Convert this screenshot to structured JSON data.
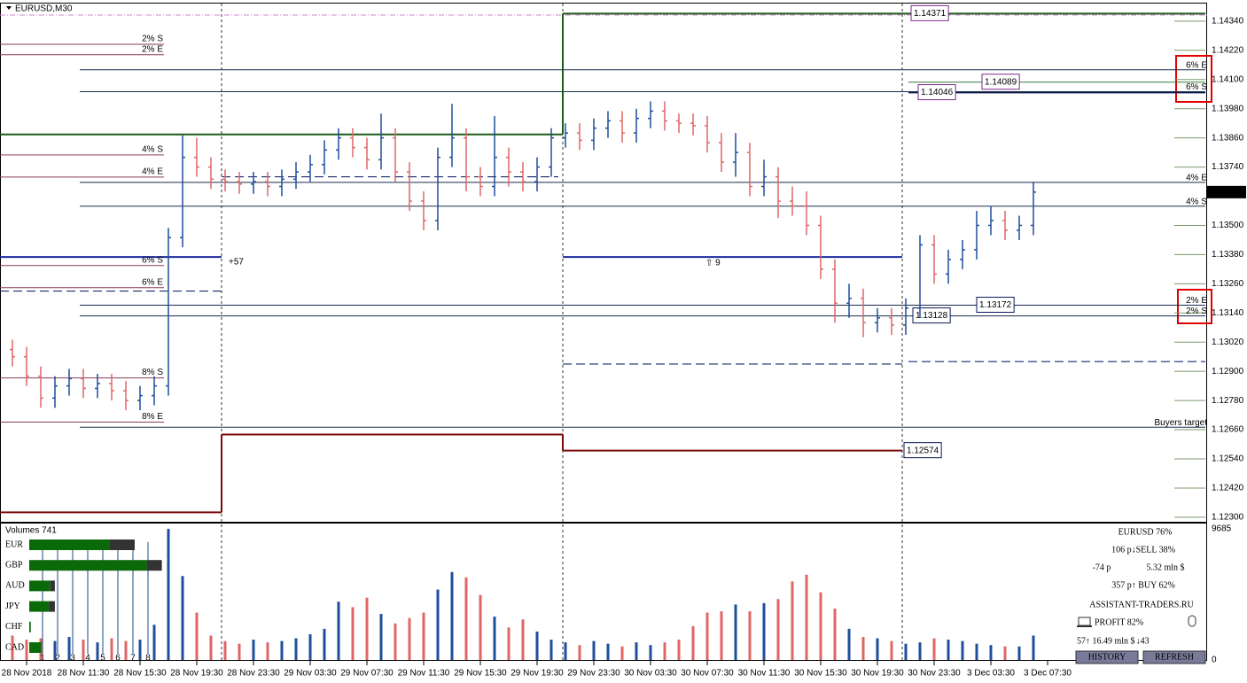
{
  "chart_data": [
    {
      "type": "candlestick",
      "title": "EURUSD,M30",
      "bull_color": "#1f4e9c",
      "bear_color": "#e06666",
      "open": [
        1.1299,
        1.1296,
        1.1288,
        1.1279,
        1.1284,
        1.1287,
        1.1283,
        1.1285,
        1.1282,
        1.1278,
        1.128,
        1.1284,
        1.1345,
        1.1378,
        1.1374,
        1.1369,
        1.1368,
        1.1367,
        1.1368,
        1.1366,
        1.1369,
        1.1372,
        1.1375,
        1.1381,
        1.1386,
        1.1382,
        1.1377,
        1.1386,
        1.1372,
        1.136,
        1.1352,
        1.1378,
        1.1386,
        1.137,
        1.1366,
        1.1378,
        1.1372,
        1.1368,
        1.1374,
        1.1386,
        1.1388,
        1.1385,
        1.139,
        1.1393,
        1.1388,
        1.1394,
        1.1397,
        1.1393,
        1.1392,
        1.1391,
        1.1384,
        1.1376,
        1.138,
        1.1366,
        1.137,
        1.136,
        1.1358,
        1.135,
        1.1332,
        1.1318,
        1.132,
        1.131,
        1.1312,
        1.1309,
        1.1316,
        1.1342,
        1.133,
        1.1336,
        1.134,
        1.135,
        1.1352,
        1.1348,
        1.135
      ],
      "high": [
        1.1303,
        1.13,
        1.1292,
        1.1288,
        1.1291,
        1.1291,
        1.1289,
        1.1289,
        1.1286,
        1.1284,
        1.1288,
        1.1349,
        1.1387,
        1.1386,
        1.1378,
        1.1373,
        1.1372,
        1.1372,
        1.1372,
        1.1373,
        1.1376,
        1.1379,
        1.1385,
        1.139,
        1.139,
        1.1386,
        1.1396,
        1.139,
        1.1376,
        1.1364,
        1.1382,
        1.14,
        1.139,
        1.1374,
        1.1395,
        1.1382,
        1.1376,
        1.1378,
        1.139,
        1.1392,
        1.1392,
        1.1394,
        1.1397,
        1.1397,
        1.1398,
        1.1401,
        1.1401,
        1.1396,
        1.1396,
        1.1395,
        1.1388,
        1.1388,
        1.1384,
        1.1377,
        1.1374,
        1.1366,
        1.1364,
        1.1354,
        1.1336,
        1.1326,
        1.1324,
        1.1316,
        1.1316,
        1.132,
        1.1346,
        1.1346,
        1.134,
        1.1344,
        1.1356,
        1.1358,
        1.1356,
        1.1354,
        1.1368
      ],
      "low": [
        1.1292,
        1.1284,
        1.1275,
        1.1275,
        1.128,
        1.1279,
        1.1279,
        1.1278,
        1.1274,
        1.1274,
        1.1276,
        1.128,
        1.1341,
        1.137,
        1.1365,
        1.1364,
        1.1363,
        1.1363,
        1.1362,
        1.1362,
        1.1365,
        1.1368,
        1.1371,
        1.1377,
        1.1378,
        1.1373,
        1.1373,
        1.1368,
        1.1356,
        1.1348,
        1.1348,
        1.1374,
        1.1364,
        1.1362,
        1.1362,
        1.1366,
        1.1364,
        1.1364,
        1.137,
        1.1382,
        1.1381,
        1.1381,
        1.1386,
        1.1384,
        1.1384,
        1.139,
        1.1389,
        1.1388,
        1.1387,
        1.138,
        1.1372,
        1.137,
        1.1362,
        1.1362,
        1.1353,
        1.1354,
        1.1346,
        1.1328,
        1.131,
        1.1312,
        1.1304,
        1.1306,
        1.1305,
        1.1305,
        1.1312,
        1.1326,
        1.1326,
        1.1332,
        1.1336,
        1.1346,
        1.1344,
        1.1344,
        1.1346
      ],
      "close": [
        1.1296,
        1.1288,
        1.1279,
        1.1284,
        1.1287,
        1.1283,
        1.1285,
        1.1282,
        1.1278,
        1.128,
        1.1284,
        1.1345,
        1.1378,
        1.1374,
        1.1369,
        1.1368,
        1.1367,
        1.1368,
        1.1366,
        1.1369,
        1.1372,
        1.1375,
        1.1381,
        1.1386,
        1.1382,
        1.1377,
        1.1386,
        1.1372,
        1.136,
        1.1352,
        1.1378,
        1.1386,
        1.137,
        1.1366,
        1.1378,
        1.1372,
        1.1368,
        1.1374,
        1.1386,
        1.1388,
        1.1385,
        1.139,
        1.1393,
        1.1388,
        1.1394,
        1.1397,
        1.1393,
        1.1392,
        1.1391,
        1.1384,
        1.1376,
        1.138,
        1.1366,
        1.137,
        1.136,
        1.1358,
        1.135,
        1.1332,
        1.1318,
        1.132,
        1.131,
        1.1312,
        1.1309,
        1.1316,
        1.1342,
        1.133,
        1.1336,
        1.134,
        1.135,
        1.1352,
        1.1348,
        1.135,
        1.13637
      ],
      "last_price": 1.13637,
      "x_labels": [
        "28 Nov 2018",
        "28 Nov 11:30",
        "28 Nov 15:30",
        "28 Nov 19:30",
        "28 Nov 23:30",
        "29 Nov 03:30",
        "29 Nov 07:30",
        "29 Nov 11:30",
        "29 Nov 15:30",
        "29 Nov 19:30",
        "29 Nov 23:30",
        "30 Nov 03:30",
        "30 Nov 07:30",
        "30 Nov 11:30",
        "30 Nov 15:30",
        "30 Nov 19:30",
        "30 Nov 23:30",
        "3 Dec 03:30",
        "3 Dec 07:30"
      ],
      "ylim": [
        1.12285,
        1.14416
      ],
      "yticks": [
        {
          "value": 1.1434,
          "label": "1.14340"
        },
        {
          "value": 1.1422,
          "label": "1.14220"
        },
        {
          "value": 1.141,
          "label": "1.14100"
        },
        {
          "value": 1.1398,
          "label": "1.13980"
        },
        {
          "value": 1.1386,
          "label": "1.13860"
        },
        {
          "value": 1.1374,
          "label": "1.13740"
        },
        {
          "value": 1.135,
          "label": "1.13500"
        },
        {
          "value": 1.1338,
          "label": "1.13380"
        },
        {
          "value": 1.1326,
          "label": "1.13260"
        },
        {
          "value": 1.1314,
          "label": "1.13140"
        },
        {
          "value": 1.1302,
          "label": "1.13020"
        },
        {
          "value": 1.129,
          "label": "1.12900"
        },
        {
          "value": 1.1278,
          "label": "1.12780"
        },
        {
          "value": 1.1266,
          "label": "1.12660"
        },
        {
          "value": 1.1254,
          "label": "1.12540"
        },
        {
          "value": 1.1242,
          "label": "1.12420"
        },
        {
          "value": 1.123,
          "label": "1.12300"
        }
      ],
      "levels": [
        {
          "price": 1.14371,
          "color": "#1a5c1a",
          "dash": "solid",
          "width": 2
        },
        {
          "price": 1.13874,
          "color": "#1a5c1a",
          "dash": "solid",
          "width": 2
        },
        {
          "price": 1.14089,
          "color": "#3a7a3a",
          "dash": "solid",
          "width": 1
        },
        {
          "price": 1.14046,
          "color": "#0a1a4a",
          "dash": "solid",
          "width": 1.5
        },
        {
          "price": 1.1414,
          "color": "#1a2a4a",
          "dash": "solid",
          "width": 1,
          "label": "6% E"
        },
        {
          "price": 1.1405,
          "color": "#1a2a4a",
          "dash": "solid",
          "width": 1,
          "label": "6% S"
        },
        {
          "price": 1.13677,
          "color": "#1a2a4a",
          "dash": "solid",
          "width": 1,
          "label": "4% E"
        },
        {
          "price": 1.13579,
          "color": "#1a2a4a",
          "dash": "solid",
          "width": 1,
          "label": "4% S"
        },
        {
          "price": 1.13172,
          "color": "#1a2a4a",
          "dash": "solid",
          "width": 1,
          "label": "2% E"
        },
        {
          "price": 1.13128,
          "color": "#1a2a4a",
          "dash": "solid",
          "width": 1,
          "label": "2% S"
        },
        {
          "price": 1.1267,
          "color": "#1a2a4a",
          "dash": "solid",
          "width": 1,
          "label": "Buyers target"
        },
        {
          "price": 1.1337,
          "color": "#1a2aa0",
          "dash": "solid",
          "width": 2
        },
        {
          "price": 1.1337,
          "color": "#1a2aa0",
          "dash": "solid",
          "width": 2
        },
        {
          "price": 1.1323,
          "color": "#1a2a6a",
          "dash": "dashed",
          "width": 1.2
        },
        {
          "price": 1.137,
          "color": "#1a2a6a",
          "dash": "dashed",
          "width": 1.2
        },
        {
          "price": 1.1293,
          "color": "#1a2a6a",
          "dash": "dashed",
          "width": 1.2
        },
        {
          "price": 1.1294,
          "color": "#1a2a6a",
          "dash": "dashed",
          "width": 1.2
        },
        {
          "price": 1.1232,
          "color": "#7a0a0a",
          "dash": "solid",
          "width": 2
        },
        {
          "price": 1.1264,
          "color": "#7a0a0a",
          "dash": "solid",
          "width": 2
        },
        {
          "price": 1.12574,
          "color": "#7a0a0a",
          "dash": "solid",
          "width": 2
        }
      ],
      "zone_levels": [
        {
          "price": 1.14245,
          "label": "2% S"
        },
        {
          "price": 1.14202,
          "label": "2% E"
        },
        {
          "price": 1.1379,
          "label": "4% S"
        },
        {
          "price": 1.13699,
          "label": "4% E"
        },
        {
          "price": 1.13335,
          "label": "6% S"
        },
        {
          "price": 1.13244,
          "label": "6% E"
        },
        {
          "price": 1.12873,
          "label": "8% S"
        },
        {
          "price": 1.12691,
          "label": "8% E"
        }
      ],
      "annotations": [
        "+57",
        "⇧  9"
      ]
    },
    {
      "type": "bar",
      "title": "Volumes 741",
      "values": [
        1800,
        1500,
        1600,
        1400,
        1700,
        1500,
        1300,
        1600,
        1400,
        1500,
        2600,
        9685,
        6200,
        3500,
        1800,
        1400,
        1200,
        1500,
        1300,
        1400,
        1600,
        1900,
        2300,
        4300,
        3900,
        4600,
        3400,
        2700,
        3100,
        3500,
        5200,
        6500,
        6100,
        4800,
        3200,
        2400,
        3000,
        2100,
        1500,
        1300,
        1100,
        1400,
        1200,
        1000,
        1300,
        1100,
        1300,
        1500,
        2500,
        3500,
        3600,
        4100,
        3600,
        4200,
        4500,
        5800,
        6300,
        5000,
        3800,
        2300,
        1700,
        1600,
        1400,
        1200,
        1300,
        1600,
        1500,
        1400,
        1200,
        1100,
        1000,
        1000,
        1800
      ],
      "ylim": [
        0,
        9685
      ],
      "yticks": [
        9685,
        0
      ]
    }
  ],
  "currency_strength": {
    "rows": [
      {
        "name": "EUR",
        "values": [
          5.3,
          1.7
        ]
      },
      {
        "name": "GBP",
        "values": [
          7.8,
          1.0
        ]
      },
      {
        "name": "AUD",
        "values": [
          1.4,
          0.3
        ]
      },
      {
        "name": "JPY",
        "values": [
          1.3,
          0.4
        ]
      },
      {
        "name": "CHF",
        "values": [
          0.1,
          0
        ]
      },
      {
        "name": "CAD",
        "values": [
          0.8,
          0
        ]
      }
    ],
    "ticks": [
      1,
      2,
      3,
      4,
      5,
      6,
      7,
      8
    ]
  },
  "info_panel": {
    "pair": "EURUSD 76%",
    "sell": "106 p↓SELL 38%",
    "result": "-74 p",
    "volume": "5.32 mln $",
    "buy": "357 p↑ BUY 62%",
    "site": "ASSISTANT-TRADERS.RU",
    "profit": "PROFIT 82%",
    "total": "57↑ 16.49 mln $",
    "down": "↓43",
    "buttons": [
      "HISTORY",
      "REFRESH"
    ]
  }
}
